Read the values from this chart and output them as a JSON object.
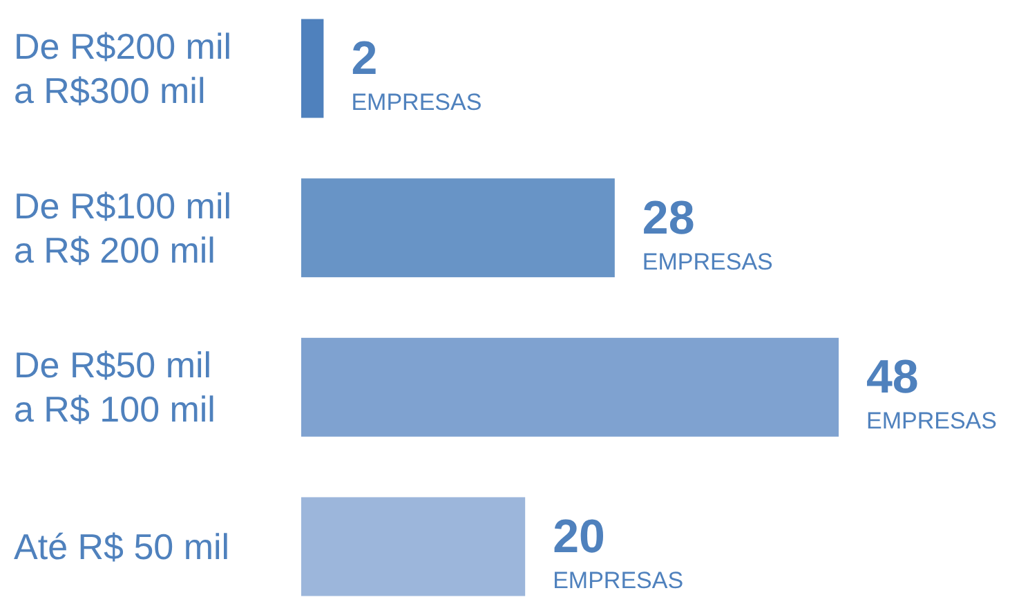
{
  "chart_data": {
    "type": "bar",
    "orientation": "horizontal",
    "categories": [
      "De R$200 mil a R$300 mil",
      "De R$100 mil a R$ 200 mil",
      "De R$50 mil a R$ 100 mil",
      "Até R$ 50 mil"
    ],
    "values": [
      2,
      28,
      48,
      20
    ],
    "colors": [
      "#4f81bd",
      "#6894c6",
      "#7fa2d0",
      "#9cb6db"
    ],
    "value_labels": [
      "2 EMPRESAS",
      "28 EMPRESAS",
      "48 EMPRESAS",
      "20 EMPRESAS"
    ]
  }
}
